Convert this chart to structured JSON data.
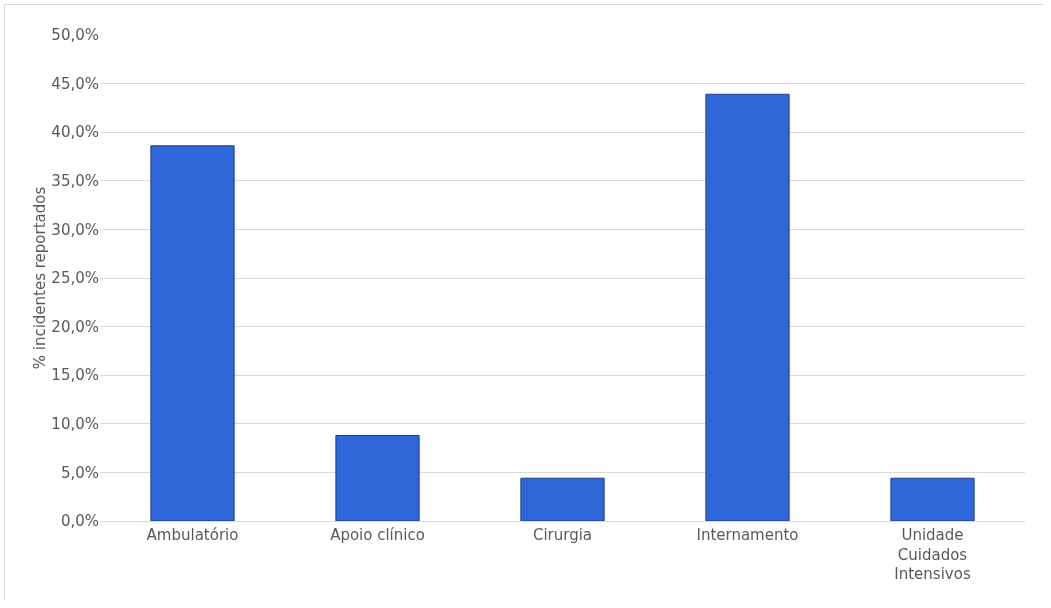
{
  "chart_data": {
    "type": "bar",
    "ylabel": "% incidentes reportados",
    "categories": [
      "Ambulatório",
      "Apoio clínico",
      "Cirurgia",
      "Internamento",
      "Unidade Cuidados Intensivos"
    ],
    "values": [
      38.6,
      8.8,
      4.4,
      43.9,
      4.4
    ],
    "color": "#2f66d8",
    "ylim": [
      0,
      50
    ],
    "yticks": [
      {
        "value": 0,
        "label": "0,0%"
      },
      {
        "value": 5,
        "label": "5,0%"
      },
      {
        "value": 10,
        "label": "10,0%"
      },
      {
        "value": 15,
        "label": "15,0%"
      },
      {
        "value": 20,
        "label": "20,0%"
      },
      {
        "value": 25,
        "label": "25,0%"
      },
      {
        "value": 30,
        "label": "30,0%"
      },
      {
        "value": 35,
        "label": "35,0%"
      },
      {
        "value": 40,
        "label": "40,0%"
      },
      {
        "value": 45,
        "label": "45,0%"
      },
      {
        "value": 50,
        "label": "50,0%"
      }
    ],
    "grid": "y"
  }
}
